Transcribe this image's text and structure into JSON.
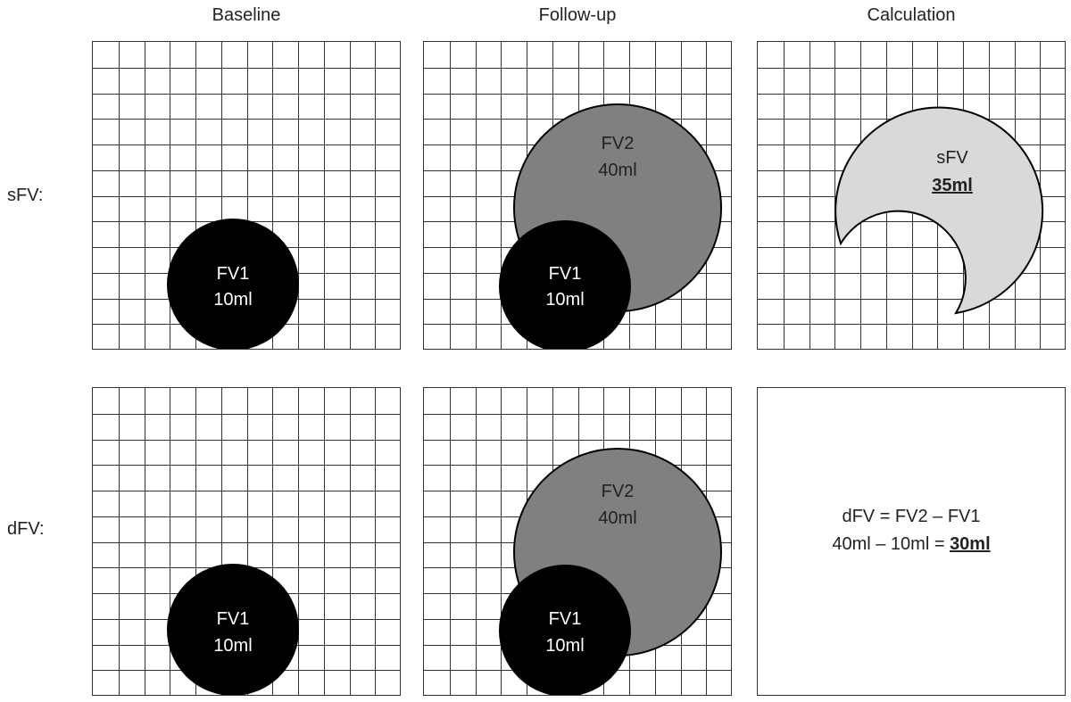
{
  "headers": {
    "baseline": "Baseline",
    "followup": "Follow-up",
    "calculation": "Calculation"
  },
  "rows": {
    "sfv_label": "sFV:",
    "dfv_label": "dFV:"
  },
  "lesions": {
    "fv1_name": "FV1",
    "fv1_volume": "10ml",
    "fv2_name": "FV2",
    "fv2_volume": "40ml"
  },
  "sfv_result": {
    "name": "sFV",
    "volume": "35ml"
  },
  "dfv_result": {
    "formula": "dFV = FV2 – FV1",
    "expression": "40ml – 10ml = ",
    "result": "30ml"
  },
  "colors": {
    "fv1_fill": "#000000",
    "fv2_fill": "#808080",
    "sfv_fill": "#d9d9d9",
    "grid_line": "#333333"
  }
}
